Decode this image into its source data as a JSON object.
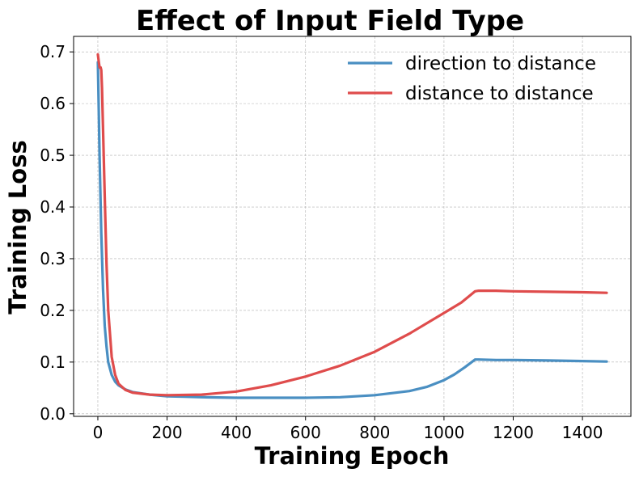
{
  "chart_data": {
    "type": "line",
    "title": "Effect of Input Field Type",
    "xlabel": "Training Epoch",
    "ylabel": "Training Loss",
    "xlim": [
      -70,
      1540
    ],
    "ylim": [
      -0.005,
      0.73
    ],
    "xticks": [
      0,
      200,
      400,
      600,
      800,
      1000,
      1200,
      1400
    ],
    "xtick_labels": [
      "0",
      "200",
      "400",
      "600",
      "800",
      "1000",
      "1200",
      "1400"
    ],
    "yticks": [
      0.0,
      0.1,
      0.2,
      0.3,
      0.4,
      0.5,
      0.6,
      0.7
    ],
    "ytick_labels": [
      "0.0",
      "0.1",
      "0.2",
      "0.3",
      "0.4",
      "0.5",
      "0.6",
      "0.7"
    ],
    "grid": true,
    "legend_position": "top-right",
    "series": [
      {
        "name": "direction to distance",
        "color": "#4a8fc2",
        "x": [
          0,
          5,
          10,
          15,
          20,
          25,
          30,
          40,
          50,
          60,
          80,
          100,
          150,
          200,
          250,
          300,
          400,
          500,
          600,
          700,
          800,
          900,
          950,
          1000,
          1030,
          1060,
          1090,
          1100,
          1150,
          1200,
          1300,
          1400,
          1470
        ],
        "y": [
          0.68,
          0.5,
          0.35,
          0.24,
          0.17,
          0.13,
          0.1,
          0.075,
          0.062,
          0.055,
          0.047,
          0.042,
          0.037,
          0.034,
          0.033,
          0.032,
          0.031,
          0.031,
          0.031,
          0.032,
          0.036,
          0.044,
          0.052,
          0.065,
          0.076,
          0.09,
          0.105,
          0.105,
          0.104,
          0.104,
          0.103,
          0.102,
          0.101
        ]
      },
      {
        "name": "distance to distance",
        "color": "#df4c4c",
        "x": [
          0,
          3,
          5,
          8,
          10,
          12,
          15,
          20,
          25,
          30,
          40,
          50,
          60,
          80,
          100,
          150,
          200,
          300,
          400,
          500,
          600,
          700,
          800,
          900,
          1000,
          1050,
          1090,
          1100,
          1150,
          1200,
          1300,
          1400,
          1470
        ],
        "y": [
          0.695,
          0.68,
          0.67,
          0.67,
          0.665,
          0.63,
          0.55,
          0.42,
          0.29,
          0.2,
          0.11,
          0.075,
          0.058,
          0.046,
          0.041,
          0.037,
          0.036,
          0.037,
          0.043,
          0.055,
          0.072,
          0.093,
          0.12,
          0.155,
          0.195,
          0.215,
          0.237,
          0.238,
          0.238,
          0.237,
          0.236,
          0.235,
          0.234
        ]
      }
    ]
  }
}
